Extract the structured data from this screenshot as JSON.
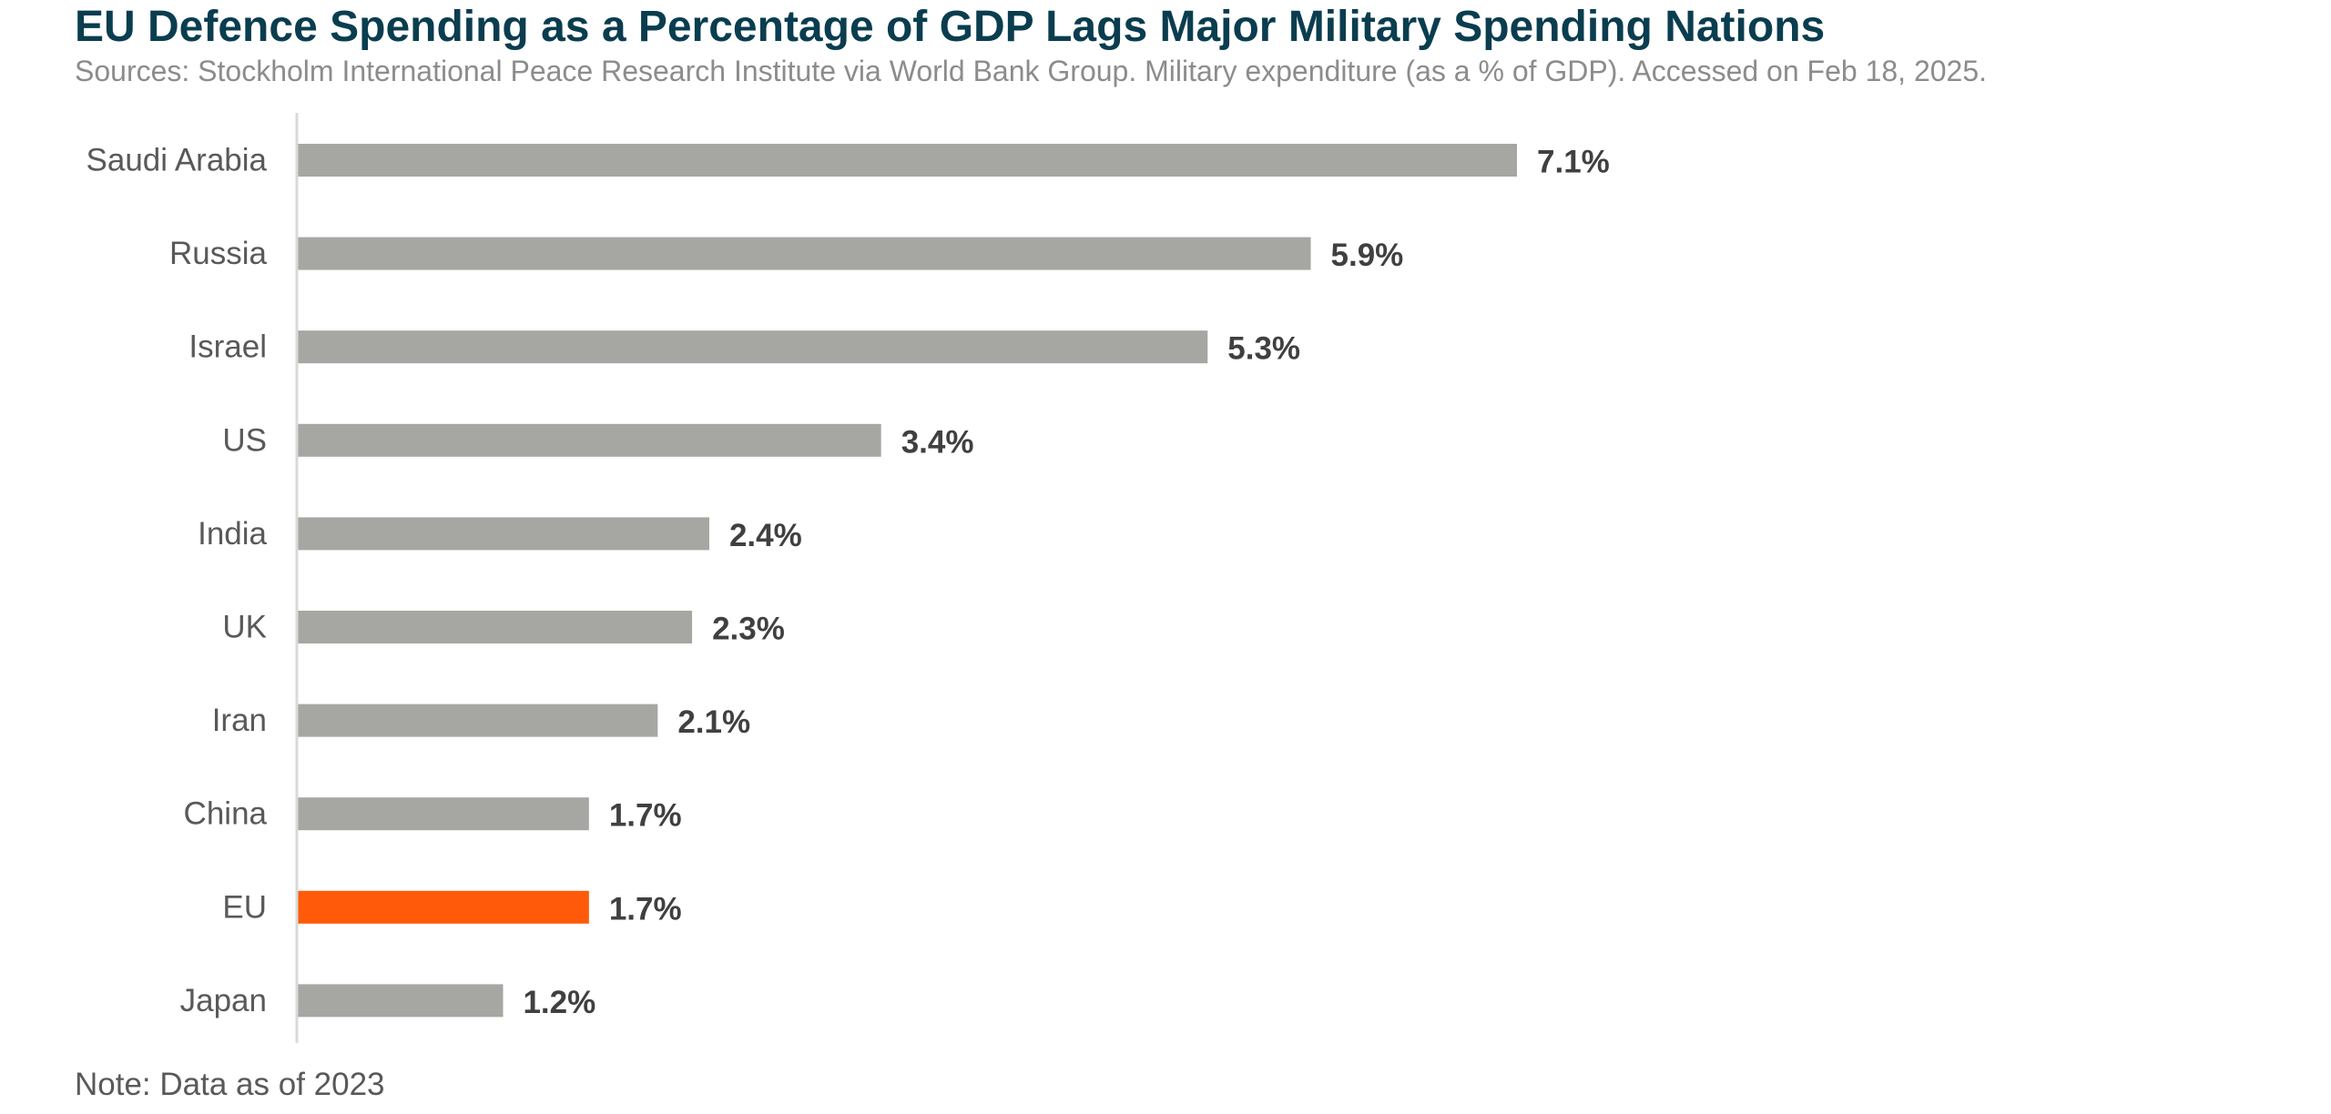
{
  "chart_data": {
    "type": "bar",
    "orientation": "horizontal",
    "title": "EU Defence Spending as a Percentage of GDP Lags Major Military Spending Nations",
    "subtitle": "Sources: Stockholm International Peace Research Institute via World Bank Group. Military expenditure (as a % of GDP). Accessed on Feb 18, 2025.",
    "note": "Note: Data as of 2023",
    "xlabel": "",
    "ylabel": "",
    "xlim": [
      0,
      7.1
    ],
    "grid": false,
    "categories": [
      "Saudi Arabia",
      "Russia",
      "Israel",
      "US",
      "India",
      "UK",
      "Iran",
      "China",
      "EU",
      "Japan"
    ],
    "values": [
      7.1,
      5.9,
      5.3,
      3.4,
      2.4,
      2.3,
      2.1,
      1.7,
      1.7,
      1.2
    ],
    "value_labels": [
      "7.1%",
      "5.9%",
      "5.3%",
      "3.4%",
      "2.4%",
      "2.3%",
      "2.1%",
      "1.7%",
      "1.7%",
      "1.2%"
    ],
    "colors": {
      "default": "#a6a6a2",
      "highlight": "#ff5a0a",
      "highlight_category": "EU",
      "axis": "#d9d9d9"
    }
  }
}
